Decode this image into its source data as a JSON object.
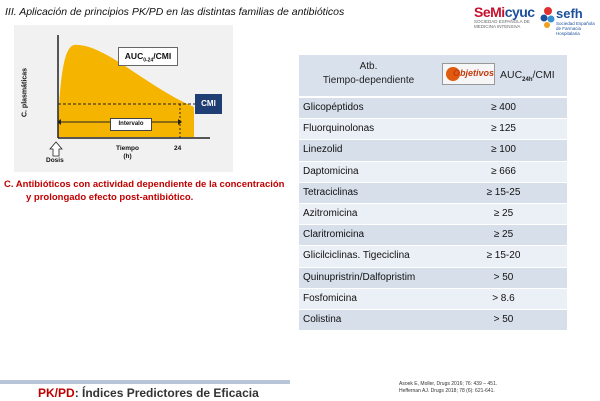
{
  "header": {
    "title": "III. Aplicación de principios PK/PD en las distintas familias de antibióticos"
  },
  "logos": {
    "semicyuc_a": "SeMi",
    "semicyuc_b": "cyuc",
    "semicyuc_sub": "SOCIEDAD ESPAÑOLA DE MEDICINA INTENSIVA",
    "sefh": "sefh",
    "sefh_sub": "Sociedad Española de Farmacia Hospitalaria"
  },
  "figure": {
    "auc_label": "AUC",
    "auc_sub": "0-24",
    "auc_suffix": "/CMI",
    "cmi_label": "CMI",
    "interval_label": "Intervalo",
    "y_axis": "C. plasmáticas",
    "x_axis": "Tiempo",
    "x_unit": "(h)",
    "dose_label": "Dosis",
    "tick_24": "24",
    "colors": {
      "curve_fill": "#f5b400",
      "cmi_box": "#1f3e73",
      "box_bg": "#f1f1f1"
    }
  },
  "caption": {
    "line1": "C. Antibióticos con actividad dependiente de la concentración",
    "line2": "y  prolongado efecto post-antibiótico."
  },
  "table": {
    "header_col1_line1": "Atb.",
    "header_col1_line2": "Tiempo-dependiente",
    "badge_text": "Objetivos",
    "header_col2": "AUC",
    "header_col2_sub": "24h",
    "header_col2_suffix": "/CMI",
    "rows": [
      {
        "name": "Glicopéptidos",
        "value": "≥ 400"
      },
      {
        "name": "Fluorquinolonas",
        "value": "≥ 125"
      },
      {
        "name": "Linezolid",
        "value": "≥ 100"
      },
      {
        "name": "Daptomicina",
        "value": "≥ 666"
      },
      {
        "name": "Tetraciclinas",
        "value": "≥ 15-25"
      },
      {
        "name": "Azitromicina",
        "value": "≥ 25"
      },
      {
        "name": "Claritromicina",
        "value": "≥ 25"
      },
      {
        "name": "Glicilciclinas. Tigeciclina",
        "value": "≥ 15-20"
      },
      {
        "name": "Quinupristrin/Dalfopristim",
        "value": "> 50"
      },
      {
        "name": "Fosfomicina",
        "value": "> 8.6"
      },
      {
        "name": "Colistina",
        "value": ">  50"
      }
    ]
  },
  "footer": {
    "title_red": "PK/PD",
    "title_rest": ": Índices Predictores de Eficacia",
    "ref1": "Asoek E, Moller, Drugs 2016; 76: 439 – 451.",
    "ref2": "Heffernan AJ. Drugs 2018; 78 (6): 621-641."
  }
}
